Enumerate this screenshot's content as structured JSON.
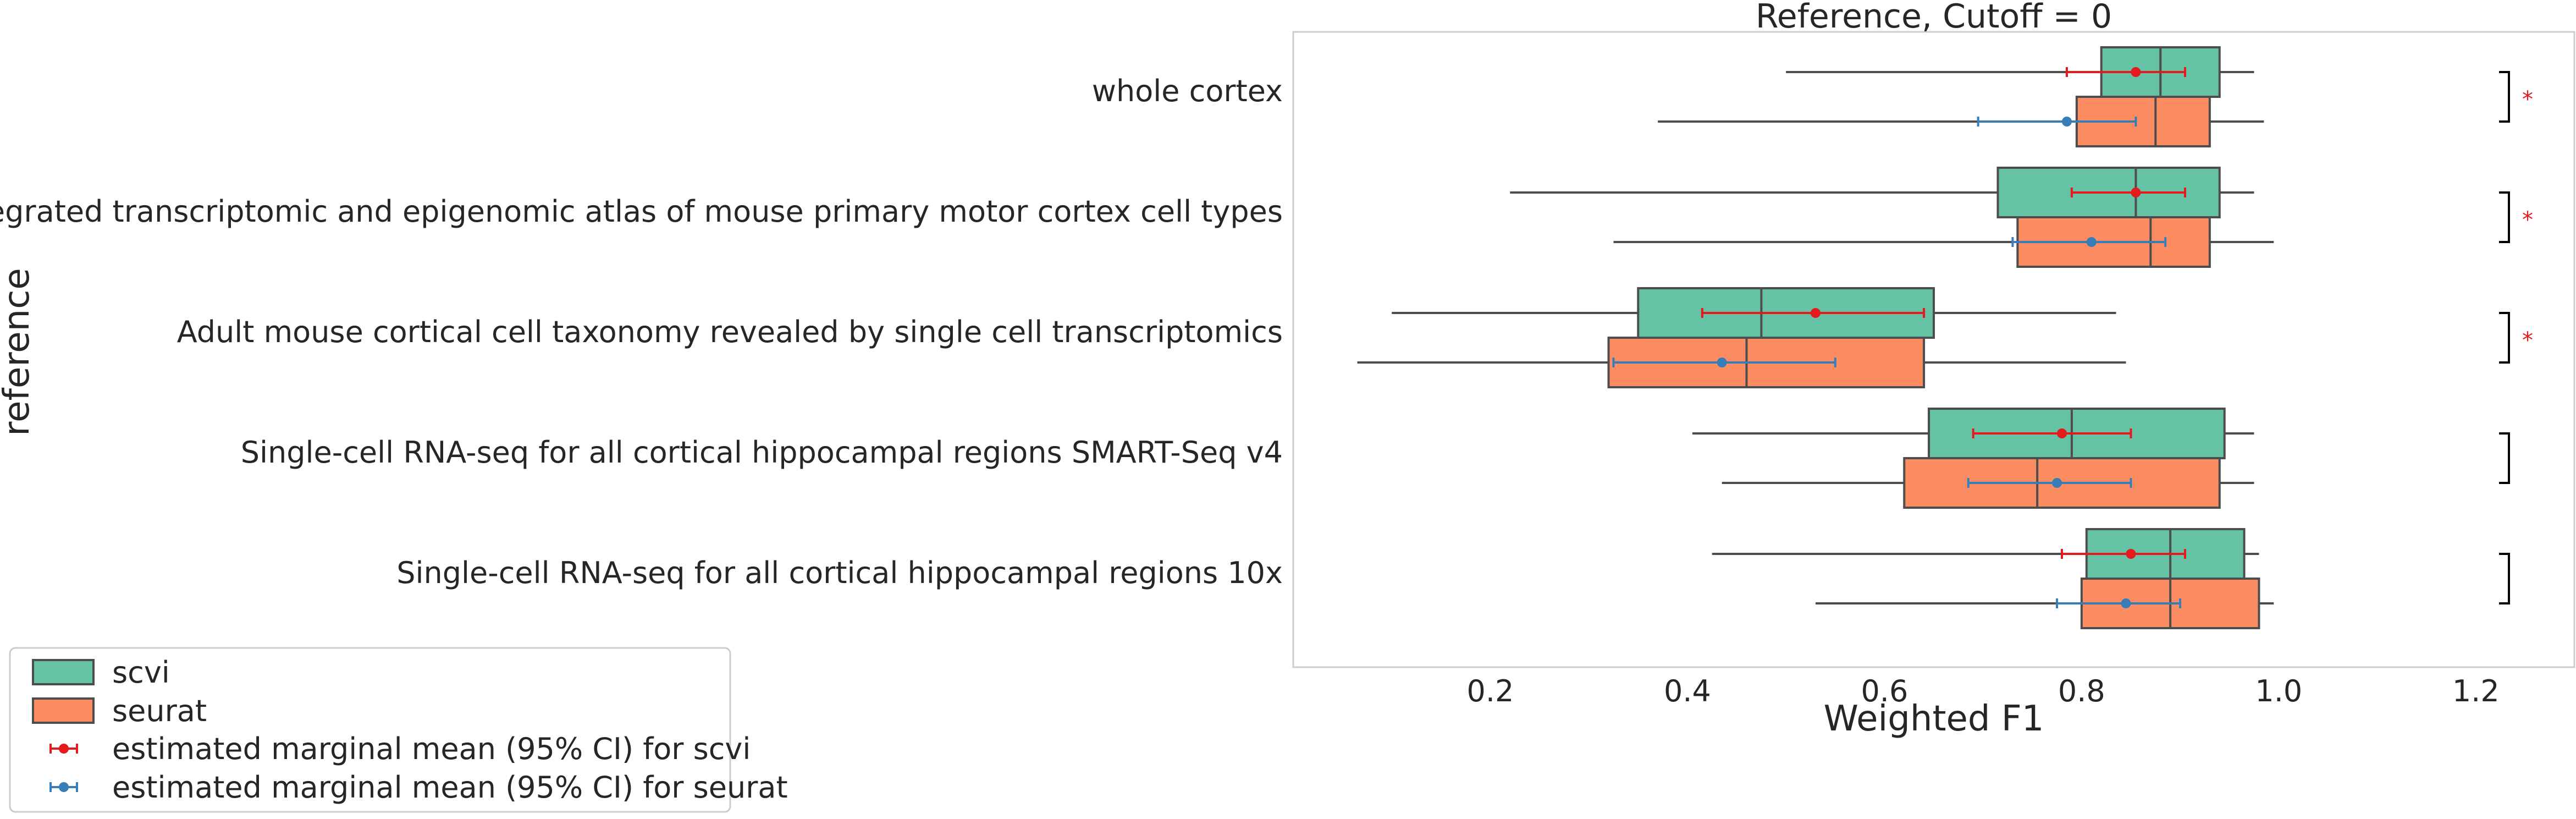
{
  "chart_data": {
    "type": "box",
    "orientation": "horizontal",
    "title": "Reference, Cutoff = 0",
    "xlabel": "Weighted F1",
    "ylabel": "reference",
    "xlim": [
      0.0,
      1.3
    ],
    "xticks": [
      "0.2",
      "0.4",
      "0.6",
      "0.8",
      "1.0",
      "1.2"
    ],
    "grid": false,
    "legend_position": "bottom-left",
    "colors": {
      "scvi": "#66c2a5",
      "seurat": "#fc8d62",
      "box_edge": "#4d4d4d",
      "mean_scvi": "#e41a1c",
      "mean_seurat": "#377eb8"
    },
    "categories": [
      "whole cortex",
      "An integrated transcriptomic and epigenomic atlas of mouse primary motor cortex cell types",
      "Adult mouse cortical cell taxonomy revealed by single cell transcriptomics",
      "Single-cell RNA-seq for all cortical  hippocampal regions SMART-Seq v4",
      "Single-cell RNA-seq for all cortical  hippocampal regions 10x"
    ],
    "series": [
      {
        "name": "scvi",
        "boxes": [
          {
            "min": 0.5,
            "q1": 0.82,
            "median": 0.88,
            "q3": 0.94,
            "max": 0.975
          },
          {
            "min": 0.22,
            "q1": 0.715,
            "median": 0.855,
            "q3": 0.94,
            "max": 0.975
          },
          {
            "min": 0.1,
            "q1": 0.35,
            "median": 0.475,
            "q3": 0.65,
            "max": 0.835
          },
          {
            "min": 0.405,
            "q1": 0.645,
            "median": 0.79,
            "q3": 0.945,
            "max": 0.975
          },
          {
            "min": 0.425,
            "q1": 0.805,
            "median": 0.89,
            "q3": 0.965,
            "max": 0.98
          }
        ],
        "mean": [
          0.855,
          0.855,
          0.53,
          0.78,
          0.85
        ],
        "ci": [
          [
            0.785,
            0.905
          ],
          [
            0.79,
            0.905
          ],
          [
            0.415,
            0.64
          ],
          [
            0.69,
            0.85
          ],
          [
            0.78,
            0.905
          ]
        ]
      },
      {
        "name": "seurat",
        "boxes": [
          {
            "min": 0.37,
            "q1": 0.795,
            "median": 0.875,
            "q3": 0.93,
            "max": 0.985
          },
          {
            "min": 0.325,
            "q1": 0.735,
            "median": 0.87,
            "q3": 0.93,
            "max": 0.995
          },
          {
            "min": 0.065,
            "q1": 0.32,
            "median": 0.46,
            "q3": 0.64,
            "max": 0.845
          },
          {
            "min": 0.435,
            "q1": 0.62,
            "median": 0.755,
            "q3": 0.94,
            "max": 0.975
          },
          {
            "min": 0.53,
            "q1": 0.8,
            "median": 0.89,
            "q3": 0.98,
            "max": 0.995
          }
        ],
        "mean": [
          0.785,
          0.81,
          0.435,
          0.775,
          0.845
        ],
        "ci": [
          [
            0.695,
            0.855
          ],
          [
            0.73,
            0.885
          ],
          [
            0.325,
            0.55
          ],
          [
            0.685,
            0.85
          ],
          [
            0.775,
            0.9
          ]
        ]
      }
    ],
    "significance": [
      "*",
      "*",
      "*",
      "",
      ""
    ],
    "legend": [
      "scvi",
      "seurat",
      "estimated marginal mean (95% CI) for scvi",
      "estimated marginal mean (95% CI) for seurat"
    ]
  }
}
